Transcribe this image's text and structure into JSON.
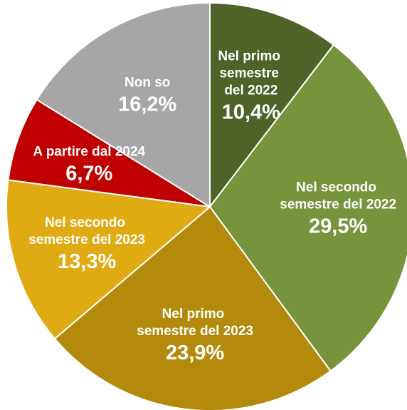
{
  "chart_data": {
    "type": "pie",
    "categories": [
      "Nel primo semestre del 2022",
      "Nel secondo semestre del 2022",
      "Nel primo semestre del 2023",
      "Nel secondo semestre del 2023",
      "A partire dal 2024",
      "Non so"
    ],
    "values": [
      10.4,
      29.5,
      23.9,
      13.3,
      6.7,
      16.2
    ],
    "value_labels": [
      "10,4%",
      "29,5%",
      "23,9%",
      "13,3%",
      "6,7%",
      "16,2%"
    ],
    "colors": [
      "#4f6228",
      "#77933c",
      "#b38a0c",
      "#e0ab12",
      "#c00000",
      "#a6a6a6"
    ]
  }
}
